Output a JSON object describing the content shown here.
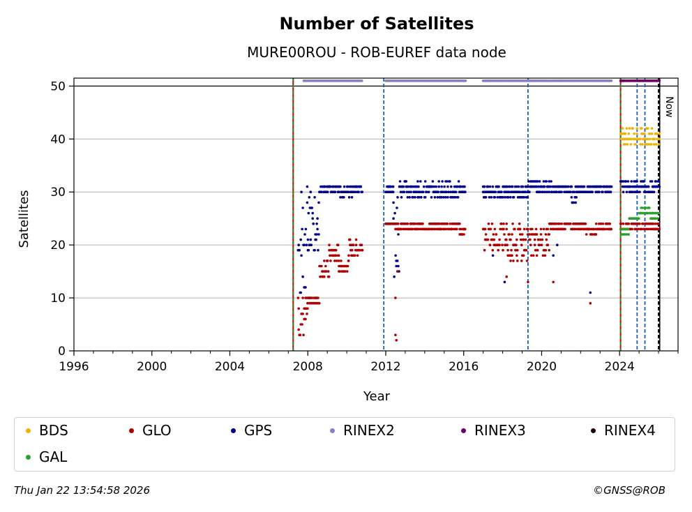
{
  "chart_data": {
    "type": "scatter",
    "title": "Number of Satellites",
    "subtitle": "MURE00ROU - ROB-EUREF data node",
    "xlabel": "Year",
    "ylabel": "Satellites",
    "xlim": [
      1996,
      2027
    ],
    "ylim": [
      0,
      51.5
    ],
    "xticks": [
      "1996",
      "2000",
      "2004",
      "2008",
      "2012",
      "2016",
      "2020",
      "2024"
    ],
    "xtick_values": [
      1996,
      2000,
      2004,
      2008,
      2012,
      2016,
      2020,
      2024
    ],
    "yticks": [
      "0",
      "10",
      "20",
      "30",
      "40",
      "50"
    ],
    "ytick_values": [
      0,
      10,
      20,
      30,
      40,
      50
    ],
    "grid": "y",
    "reference_line_y": 50,
    "now_label": "Now",
    "now_x": 2026.06,
    "events": [
      {
        "x": 2007.25,
        "style": "red-green-dashed"
      },
      {
        "x": 2011.9,
        "style": "blue-dashed"
      },
      {
        "x": 2019.3,
        "style": "blue-dashed"
      },
      {
        "x": 2024.05,
        "style": "red-green-dashed"
      },
      {
        "x": 2024.9,
        "style": "blue-dashed"
      },
      {
        "x": 2025.3,
        "style": "blue-dashed"
      },
      {
        "x": 2026.0,
        "style": "black-dashed"
      }
    ],
    "series": [
      {
        "name": "BDS",
        "color": "#f0b400",
        "segments": [
          [
            2024.05,
            2026.05,
            39,
            42
          ]
        ]
      },
      {
        "name": "GLO",
        "color": "#b00000",
        "segments": [
          [
            2007.5,
            2008.0,
            2,
            11
          ],
          [
            2008.0,
            2008.6,
            9,
            10
          ],
          [
            2008.6,
            2009.1,
            14,
            17
          ],
          [
            2009.1,
            2009.6,
            17,
            20
          ],
          [
            2009.6,
            2010.1,
            15,
            17
          ],
          [
            2010.1,
            2010.8,
            18,
            21
          ],
          [
            2012.0,
            2012.5,
            24,
            24
          ],
          [
            2012.5,
            2015.8,
            23,
            24
          ],
          [
            2015.8,
            2016.1,
            22,
            23
          ],
          [
            2017.0,
            2018.2,
            19,
            24
          ],
          [
            2018.2,
            2019.3,
            17,
            24
          ],
          [
            2019.3,
            2020.4,
            18,
            23
          ],
          [
            2020.4,
            2022.3,
            23,
            24
          ],
          [
            2022.3,
            2022.8,
            22,
            23
          ],
          [
            2022.8,
            2023.6,
            23,
            24
          ],
          [
            2024.05,
            2026.05,
            23,
            24
          ]
        ]
      },
      {
        "name": "GPS",
        "color": "#000090",
        "segments": [
          [
            2007.5,
            2007.9,
            8,
            30
          ],
          [
            2007.9,
            2008.6,
            19,
            31
          ],
          [
            2008.6,
            2009.6,
            30,
            31
          ],
          [
            2009.6,
            2010.3,
            29,
            31
          ],
          [
            2010.3,
            2010.8,
            30,
            31
          ],
          [
            2012.0,
            2012.4,
            30,
            31
          ],
          [
            2012.4,
            2012.7,
            14,
            31
          ],
          [
            2012.7,
            2015.8,
            29,
            32
          ],
          [
            2015.8,
            2016.1,
            30,
            31
          ],
          [
            2017.0,
            2019.3,
            29,
            31
          ],
          [
            2019.3,
            2020.5,
            30,
            32
          ],
          [
            2020.5,
            2021.5,
            30,
            31
          ],
          [
            2021.5,
            2021.8,
            28,
            31
          ],
          [
            2021.8,
            2023.6,
            30,
            31
          ],
          [
            2024.05,
            2026.05,
            30,
            32
          ]
        ]
      },
      {
        "name": "RINEX2",
        "color": "#8a82c0",
        "segments": [
          [
            2007.8,
            2010.8,
            51,
            51
          ],
          [
            2012.0,
            2016.1,
            51,
            51
          ],
          [
            2017.0,
            2023.6,
            51,
            51
          ]
        ]
      },
      {
        "name": "RINEX3",
        "color": "#6a0060",
        "segments": [
          [
            2024.05,
            2026.05,
            51,
            51
          ]
        ]
      },
      {
        "name": "RINEX4",
        "color": "#200010",
        "segments": []
      },
      {
        "name": "GAL",
        "color": "#2ca02c",
        "segments": [
          [
            2024.05,
            2024.5,
            22,
            23
          ],
          [
            2024.5,
            2025.0,
            25,
            25
          ],
          [
            2025.0,
            2025.6,
            26,
            27
          ],
          [
            2025.6,
            2026.05,
            25,
            26
          ]
        ]
      }
    ],
    "outliers": [
      {
        "series": "GLO",
        "points": [
          [
            2012.5,
            3
          ],
          [
            2012.55,
            2
          ],
          [
            2012.5,
            10
          ],
          [
            2012.6,
            15
          ],
          [
            2018.2,
            14
          ],
          [
            2019.3,
            13
          ],
          [
            2020.6,
            13
          ],
          [
            2022.5,
            9
          ]
        ]
      },
      {
        "series": "GPS",
        "points": [
          [
            2012.6,
            17
          ],
          [
            2017.5,
            18
          ],
          [
            2018.1,
            13
          ],
          [
            2020.8,
            20
          ],
          [
            2022.5,
            11
          ],
          [
            2020.6,
            18
          ]
        ]
      }
    ],
    "legend_position": "below"
  },
  "legend": [
    {
      "label": "BDS",
      "color": "#f0b400"
    },
    {
      "label": "GLO",
      "color": "#b00000"
    },
    {
      "label": "GPS",
      "color": "#000090"
    },
    {
      "label": "RINEX2",
      "color": "#8a82c0"
    },
    {
      "label": "RINEX3",
      "color": "#6a0060"
    },
    {
      "label": "RINEX4",
      "color": "#200010"
    },
    {
      "label": "GAL",
      "color": "#2ca02c"
    }
  ],
  "footer": {
    "timestamp": "Thu Jan 22 13:54:58 2026",
    "copyright": "©GNSS@ROB"
  }
}
